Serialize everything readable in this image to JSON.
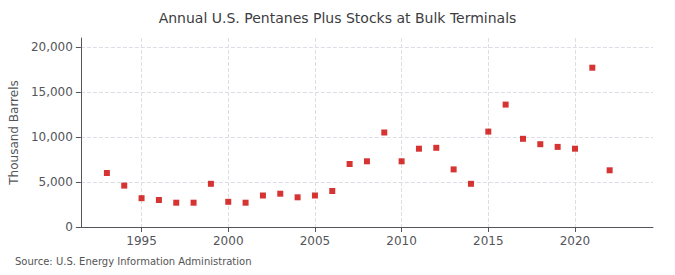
{
  "chart_data": {
    "type": "scatter",
    "title": "Annual U.S. Pentanes Plus Stocks at Bulk Terminals",
    "ylabel": "Thousand Barrels",
    "source": "Source: U.S. Energy Information Administration",
    "x": [
      1993,
      1994,
      1995,
      1996,
      1997,
      1998,
      1999,
      2000,
      2001,
      2002,
      2003,
      2004,
      2005,
      2006,
      2007,
      2008,
      2009,
      2010,
      2011,
      2012,
      2013,
      2014,
      2015,
      2016,
      2017,
      2018,
      2019,
      2020,
      2021,
      2022
    ],
    "values": [
      6000,
      4600,
      3200,
      3000,
      2700,
      2700,
      4800,
      2800,
      2700,
      3500,
      3700,
      3300,
      3500,
      4000,
      7000,
      7300,
      10500,
      7300,
      8700,
      8800,
      6400,
      4800,
      10600,
      13600,
      9800,
      9200,
      8900,
      8700,
      17700,
      6300
    ],
    "color": "#cc0000",
    "marker": "square",
    "xlim": [
      1991.5,
      2024.5
    ],
    "xticks": [
      1995,
      2000,
      2005,
      2010,
      2015,
      2020
    ],
    "ylim": [
      0,
      21000
    ],
    "yticks": [
      0,
      {
        "value": 5000,
        "label": "5,000"
      },
      {
        "value": 10000,
        "label": "10,000"
      },
      {
        "value": 15000,
        "label": "15,000"
      },
      {
        "value": 20000,
        "label": "20,000"
      }
    ],
    "grid": true
  }
}
